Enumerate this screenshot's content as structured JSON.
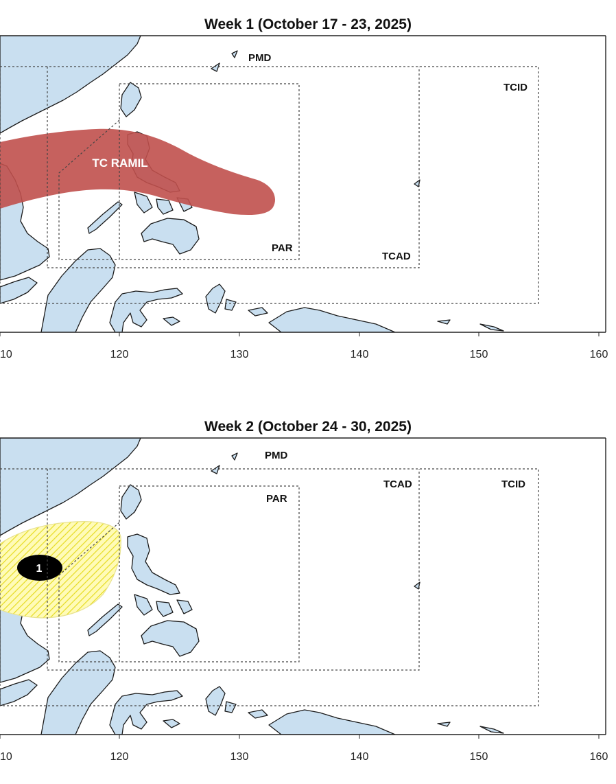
{
  "colors": {
    "land": "#c9dff0",
    "coast": "#1a1a1a",
    "boundary": "#444444",
    "tc_ramil_fill": "#c0504d",
    "hatch_fill": "#fffbb8",
    "hatch_line": "#e6dc22",
    "marker": "#000000"
  },
  "x_ticks": [
    "10",
    "120",
    "130",
    "140",
    "150",
    "160"
  ],
  "panels": [
    {
      "title": "Week 1 (October 17 - 23, 2025)",
      "labels": {
        "pmd": "PMD",
        "tcid": "TCID",
        "tcad": "TCAD",
        "par": "PAR"
      },
      "storm_label": "TC RAMIL"
    },
    {
      "title": "Week 2 (October 24 - 30, 2025)",
      "labels": {
        "pmd": "PMD",
        "tcid": "TCID",
        "tcad": "TCAD",
        "par": "PAR"
      },
      "area_marker": "1"
    }
  ]
}
